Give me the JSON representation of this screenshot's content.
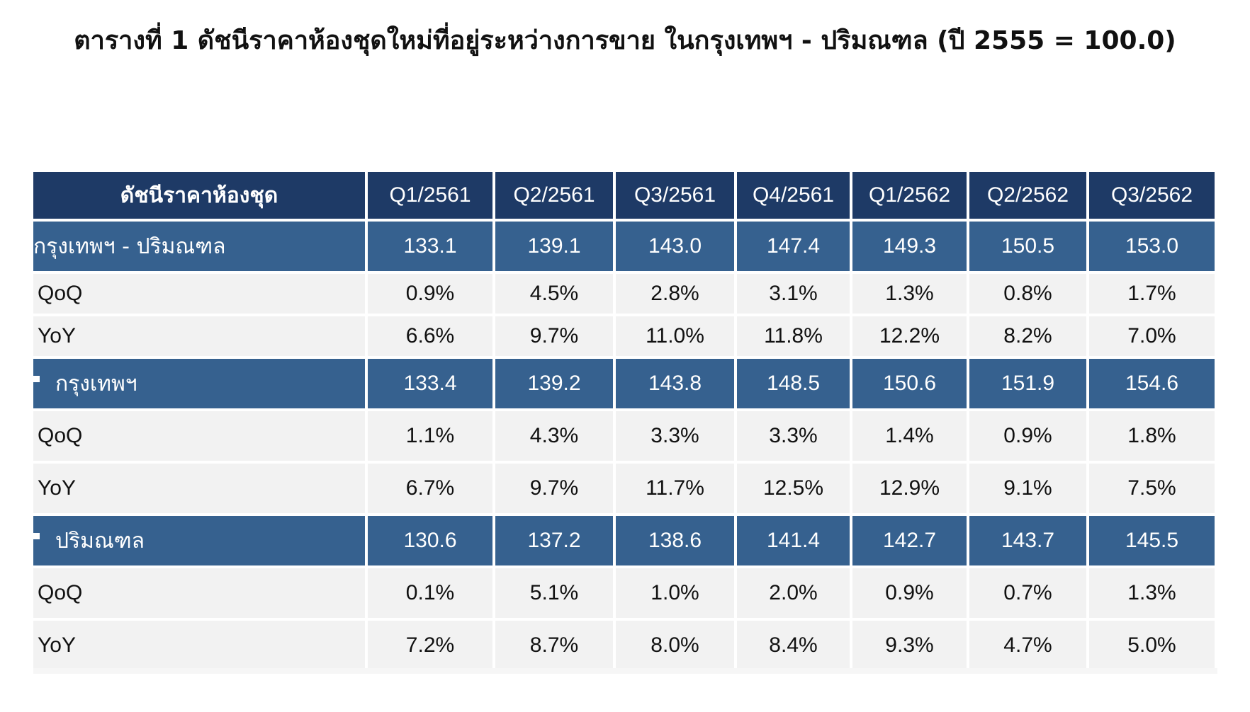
{
  "title": "ตารางที่ 1 ดัชนีราคาห้องชุดใหม่ที่อยู่ระหว่างการขาย ในกรุงเทพฯ - ปริมณฑล (ปี 2555 = 100.0)",
  "table": {
    "header": [
      "ดัชนีราคาห้องชุด",
      "Q1/2561",
      "Q2/2561",
      "Q3/2561",
      "Q4/2561",
      "Q1/2562",
      "Q2/2562",
      "Q3/2562"
    ],
    "groups": [
      {
        "name": "กรุงเทพฯ - ปริมณฑล",
        "bullet": false,
        "index": [
          "133.1",
          "139.1",
          "143.0",
          "147.4",
          "149.3",
          "150.5",
          "153.0"
        ],
        "qoq_label": "QoQ",
        "qoq": [
          "0.9%",
          "4.5%",
          "2.8%",
          "3.1%",
          "1.3%",
          "0.8%",
          "1.7%"
        ],
        "yoy_label": "YoY",
        "yoy": [
          "6.6%",
          "9.7%",
          "11.0%",
          "11.8%",
          "12.2%",
          "8.2%",
          "7.0%"
        ]
      },
      {
        "name": "กรุงเทพฯ",
        "bullet": true,
        "index": [
          "133.4",
          "139.2",
          "143.8",
          "148.5",
          "150.6",
          "151.9",
          "154.6"
        ],
        "qoq_label": "QoQ",
        "qoq": [
          "1.1%",
          "4.3%",
          "3.3%",
          "3.3%",
          "1.4%",
          "0.9%",
          "1.8%"
        ],
        "yoy_label": "YoY",
        "yoy": [
          "6.7%",
          "9.7%",
          "11.7%",
          "12.5%",
          "12.9%",
          "9.1%",
          "7.5%"
        ]
      },
      {
        "name": "ปริมณฑล",
        "bullet": true,
        "index": [
          "130.6",
          "137.2",
          "138.6",
          "141.4",
          "142.7",
          "143.7",
          "145.5"
        ],
        "qoq_label": "QoQ",
        "qoq": [
          "0.1%",
          "5.1%",
          "1.0%",
          "2.0%",
          "0.9%",
          "0.7%",
          "1.3%"
        ],
        "yoy_label": "YoY",
        "yoy": [
          "7.2%",
          "8.7%",
          "8.0%",
          "8.4%",
          "9.3%",
          "4.7%",
          "5.0%"
        ]
      }
    ]
  },
  "colors": {
    "header_bg": "#1e3a66",
    "index_row_bg": "#36618f",
    "change_row_bg": "#f2f2f2"
  }
}
